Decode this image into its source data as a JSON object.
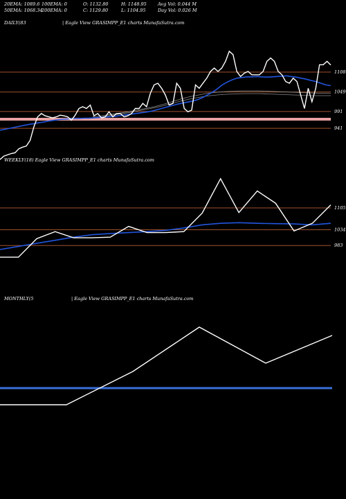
{
  "header": {
    "row1": [
      {
        "label": "20EMA: 1089.6"
      },
      {
        "label": "100EMA: 0"
      },
      {
        "label": "O: 1132.80"
      },
      {
        "label": "H: 1148.95"
      },
      {
        "label": "Avg Vol: 0.044  M"
      }
    ],
    "row2": [
      {
        "label": "50EMA: 1068.34"
      },
      {
        "label": "200EMA: 0"
      },
      {
        "label": "C: 1129.80"
      },
      {
        "label": "L: 1104.95"
      },
      {
        "label": "Day Vol: 0.026  M"
      }
    ]
  },
  "colors": {
    "background": "#000000",
    "price": "#ffffff",
    "ema": "#2255dd",
    "level": "#a0522d",
    "band": "#e8a0a0",
    "grey": "#888888"
  },
  "chart_data": [
    {
      "type": "line",
      "panel": "daily",
      "title": "DAILY(83",
      "subtitle": "| Eagle   View  GRASIMPP_E1 charts MunafaSutra.com",
      "ylim": [
        900,
        1240
      ],
      "levels": [
        1108,
        1049,
        991,
        941
      ],
      "level_labels": [
        "1108",
        "1049",
        "991",
        "941"
      ],
      "band_level": 968,
      "price": [
        848,
        858,
        862,
        866,
        868,
        880,
        885,
        888,
        905,
        945,
        975,
        985,
        978,
        975,
        972,
        975,
        980,
        978,
        975,
        965,
        980,
        1000,
        1005,
        1000,
        1010,
        978,
        985,
        972,
        975,
        990,
        975,
        985,
        985,
        975,
        978,
        985,
        1000,
        1000,
        1015,
        1005,
        1045,
        1070,
        1075,
        1060,
        1040,
        1010,
        1015,
        1075,
        1060,
        1000,
        990,
        995,
        1070,
        1060,
        1075,
        1090,
        1110,
        1120,
        1110,
        1120,
        1140,
        1170,
        1160,
        1110,
        1095,
        1105,
        1110,
        1100,
        1100,
        1100,
        1110,
        1140,
        1150,
        1140,
        1110,
        1100,
        1080,
        1075,
        1090,
        1080,
        1040,
        1000,
        1060,
        1020,
        1060,
        1130,
        1130,
        1140,
        1129
      ],
      "ema": [
        935,
        938,
        941,
        944,
        947,
        950,
        953,
        955,
        958,
        960,
        963,
        965,
        967,
        968,
        969,
        970,
        970,
        971,
        971,
        972,
        973,
        974,
        975,
        976,
        978,
        980,
        982,
        984,
        986,
        988,
        990,
        993,
        997,
        1001,
        1005,
        1009,
        1013,
        1016,
        1019,
        1022,
        1026,
        1032,
        1040,
        1048,
        1058,
        1070,
        1078,
        1085,
        1090,
        1092,
        1094,
        1094,
        1095,
        1094,
        1093,
        1094,
        1095,
        1096,
        1097,
        1095,
        1093,
        1090,
        1087,
        1083,
        1080,
        1075,
        1070,
        1068
      ],
      "grey_lines": [
        [
          975,
          978,
          982,
          986,
          990,
          995,
          1000,
          1005,
          1012,
          1020,
          1028,
          1035,
          1040,
          1045,
          1048,
          1050,
          1051,
          1052,
          1052,
          1052,
          1051,
          1050,
          1049,
          1048,
          1047,
          1046,
          1045,
          1045
        ],
        [
          972,
          975,
          979,
          983,
          987,
          992,
          997,
          1002,
          1008,
          1015,
          1022,
          1028,
          1033,
          1037,
          1040,
          1042,
          1043,
          1044,
          1044,
          1044,
          1043,
          1042,
          1041,
          1040,
          1039,
          1038,
          1038,
          1038
        ]
      ]
    },
    {
      "type": "line",
      "panel": "weekly",
      "title": "WEEKLY(18) Eagle   View  GRASIMPP_E1 charts MunafaSutra.com",
      "ylim": [
        880,
        1240
      ],
      "levels": [
        1105,
        1034,
        983
      ],
      "level_labels": [
        "1105",
        "1034",
        "983"
      ],
      "price": [
        945,
        945,
        1005,
        1028,
        1008,
        1008,
        1010,
        1045,
        1025,
        1025,
        1028,
        1088,
        1200,
        1090,
        1160,
        1120,
        1030,
        1055,
        1115
      ],
      "ema": [
        970,
        980,
        990,
        1000,
        1010,
        1018,
        1022,
        1025,
        1028,
        1032,
        1040,
        1050,
        1055,
        1057,
        1055,
        1054,
        1053,
        1050,
        1055
      ]
    },
    {
      "type": "line",
      "panel": "monthly",
      "title": "MONTHLY(5",
      "subtitle": "| Eagle   View  GRASIMPP_E1 charts MunafaSutra.com",
      "ylim": [
        920,
        1320
      ],
      "price": [
        960,
        960,
        1080,
        1240,
        1110,
        1210
      ],
      "ema": [
        1020
      ]
    }
  ]
}
